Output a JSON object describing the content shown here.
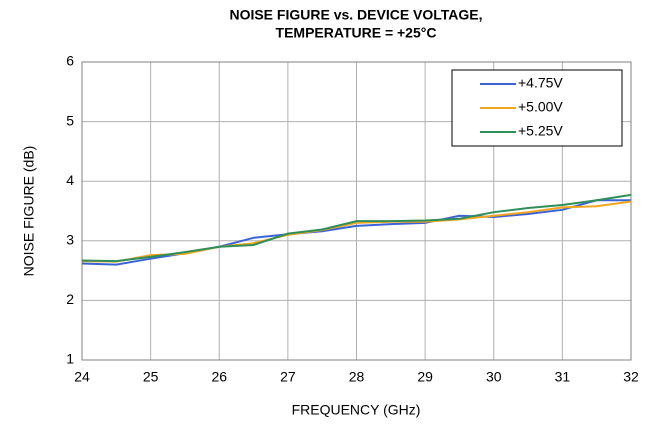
{
  "chart_data": {
    "type": "line",
    "title": [
      "NOISE FIGURE vs. DEVICE VOLTAGE,",
      "TEMPERATURE = +25°C"
    ],
    "x_label": "FREQUENCY (GHz)",
    "y_label": "NOISE FIGURE (dB)",
    "x": [
      24,
      24.5,
      25,
      25.5,
      26,
      26.5,
      27,
      27.5,
      28,
      28.5,
      29,
      29.5,
      30,
      30.5,
      31,
      31.5,
      32
    ],
    "series": [
      {
        "name": "+4.75V",
        "color": "#3b63d6",
        "values": [
          2.62,
          2.6,
          2.7,
          2.79,
          2.9,
          3.05,
          3.11,
          3.16,
          3.25,
          3.28,
          3.3,
          3.42,
          3.4,
          3.45,
          3.52,
          3.68,
          3.68
        ]
      },
      {
        "name": "+5.00V",
        "color": "#f2a51e",
        "values": [
          2.66,
          2.65,
          2.76,
          2.78,
          2.9,
          2.96,
          3.1,
          3.18,
          3.3,
          3.32,
          3.32,
          3.36,
          3.42,
          3.48,
          3.56,
          3.58,
          3.66
        ]
      },
      {
        "name": "+5.25V",
        "color": "#2f8f5a",
        "values": [
          2.67,
          2.66,
          2.73,
          2.81,
          2.9,
          2.93,
          3.12,
          3.19,
          3.33,
          3.33,
          3.34,
          3.37,
          3.48,
          3.55,
          3.6,
          3.68,
          3.77
        ]
      }
    ],
    "xlim": [
      24,
      32
    ],
    "xticks": [
      24,
      25,
      26,
      27,
      28,
      29,
      30,
      31,
      32
    ],
    "ylim": [
      1,
      6
    ],
    "yticks": [
      1,
      2,
      3,
      4,
      5,
      6
    ],
    "grid": true,
    "legend": "upper right"
  }
}
